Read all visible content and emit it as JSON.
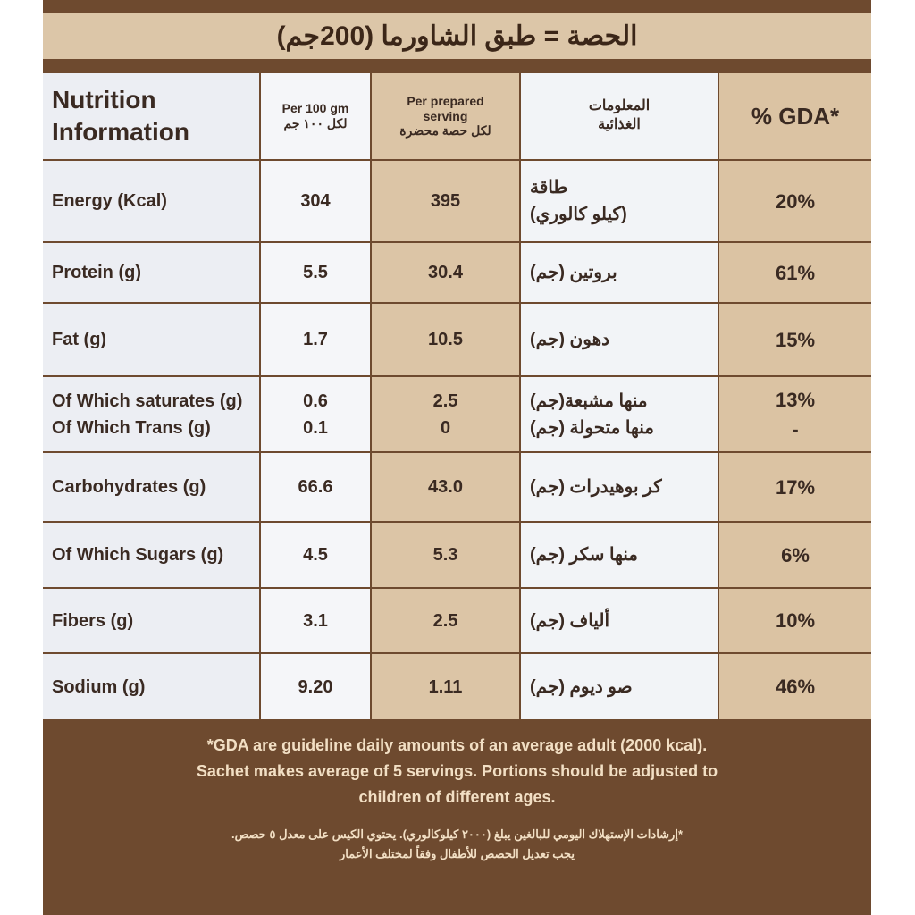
{
  "serving": "الحصة = طبق الشاورما (200جم)",
  "table": {
    "header": [
      [
        "Nutrition",
        "Information"
      ],
      [
        "Per 100 gm",
        "لكل ١٠٠ جم"
      ],
      [
        "Per prepared",
        "serving",
        "لكل حصة محضرة"
      ],
      [
        "المعلومات",
        "الغذائية"
      ],
      "% GDA*"
    ],
    "rows": [
      [
        "Energy (Kcal)",
        "304",
        "395",
        [
          "طاقة",
          "(كيلو كالوري)"
        ],
        "20%"
      ],
      [
        "Protein (g)",
        "5.5",
        "30.4",
        "بروتين (جم)",
        "61%"
      ],
      [
        "Fat (g)",
        "1.7",
        "10.5",
        "دهون (جم)",
        "15%"
      ],
      [
        [
          "Of Which saturates (g)",
          "Of Which Trans (g)"
        ],
        [
          "0.6",
          "0.1"
        ],
        [
          "2.5",
          "0"
        ],
        [
          "منها مشبعة(جم)",
          "منها متحولة (جم)"
        ],
        [
          "13%",
          "-"
        ]
      ],
      [
        "Carbohydrates (g)",
        "66.6",
        "43.0",
        "كر بوهيدرات (جم)",
        "17%"
      ],
      [
        "Of Which Sugars (g)",
        "4.5",
        "5.3",
        "منها سكر (جم)",
        "6%"
      ],
      [
        "Fibers (g)",
        "3.1",
        "2.5",
        "ألياف (جم)",
        "10%"
      ],
      [
        "Sodium (g)",
        "9.20",
        "1.11",
        "صو ديوم (جم)",
        "46%"
      ]
    ]
  },
  "footnote_en": [
    "*GDA are guideline daily amounts of an average adult (2000 kcal).",
    "Sachet makes average of 5 servings. Portions should be adjusted to",
    "children of different ages."
  ],
  "footnote_ar": [
    "*إرشادات الإستهلاك اليومي للبالغين يبلغ (٢٠٠٠ كيلوكالوري). يحتوي الكيس على معدل ٥ حصص.",
    "يجب تعديل الحصص للأطفال وفقاً لمختلف الأعمار"
  ]
}
